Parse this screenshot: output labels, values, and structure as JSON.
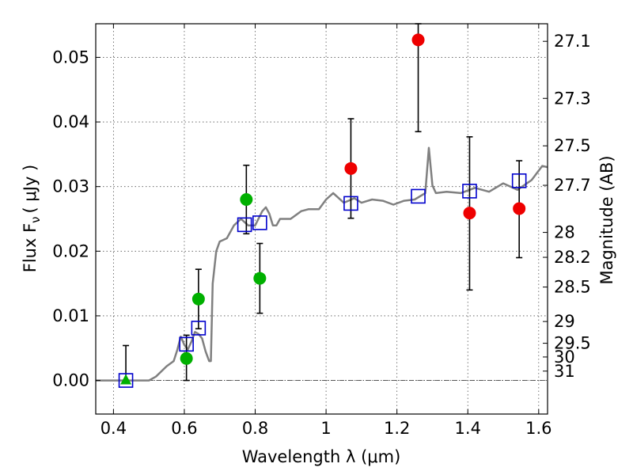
{
  "chart_data": {
    "type": "scatter",
    "xlabel": "Wavelength  λ (μm)",
    "ylabel": "Flux  F",
    "ylabel_sub": "ν",
    "ylabel_unit": "( μJy )",
    "y2label": "Magnitude (AB)",
    "xlim": [
      0.35,
      1.625
    ],
    "ylim": [
      -0.0052,
      0.0552
    ],
    "grid": true,
    "x_ticks": [
      {
        "v": 0.4,
        "label": "0.4"
      },
      {
        "v": 0.6,
        "label": "0.6"
      },
      {
        "v": 0.8,
        "label": "0.8"
      },
      {
        "v": 1.0,
        "label": "1"
      },
      {
        "v": 1.2,
        "label": "1.2"
      },
      {
        "v": 1.4,
        "label": "1.4"
      },
      {
        "v": 1.6,
        "label": "1.6"
      }
    ],
    "y_ticks": [
      {
        "v": 0.0,
        "label": "0.00"
      },
      {
        "v": 0.01,
        "label": "0.01"
      },
      {
        "v": 0.02,
        "label": "0.02"
      },
      {
        "v": 0.03,
        "label": "0.03"
      },
      {
        "v": 0.04,
        "label": "0.04"
      },
      {
        "v": 0.05,
        "label": "0.05"
      }
    ],
    "mag_ticks": [
      {
        "v": 27.1,
        "label": "27.1"
      },
      {
        "v": 27.3,
        "label": "27.3"
      },
      {
        "v": 27.5,
        "label": "27.5"
      },
      {
        "v": 27.7,
        "label": "27.7"
      },
      {
        "v": 28.0,
        "label": "28"
      },
      {
        "v": 28.2,
        "label": "28.2"
      },
      {
        "v": 28.5,
        "label": "28.5"
      },
      {
        "v": 29.0,
        "label": "29"
      },
      {
        "v": 29.5,
        "label": "29.5"
      },
      {
        "v": 30.0,
        "label": "30"
      },
      {
        "v": 31.0,
        "label": "31"
      }
    ],
    "mag_zero_point": 23.9,
    "model_spectrum": [
      [
        0.35,
        0.0
      ],
      [
        0.5,
        0.0
      ],
      [
        0.52,
        0.0006
      ],
      [
        0.55,
        0.0022
      ],
      [
        0.57,
        0.003
      ],
      [
        0.58,
        0.0047
      ],
      [
        0.59,
        0.0068
      ],
      [
        0.6,
        0.0055
      ],
      [
        0.61,
        0.0048
      ],
      [
        0.62,
        0.006
      ],
      [
        0.63,
        0.0075
      ],
      [
        0.64,
        0.0072
      ],
      [
        0.65,
        0.0065
      ],
      [
        0.66,
        0.0045
      ],
      [
        0.67,
        0.003
      ],
      [
        0.675,
        0.003
      ],
      [
        0.68,
        0.015
      ],
      [
        0.69,
        0.02
      ],
      [
        0.7,
        0.0215
      ],
      [
        0.72,
        0.022
      ],
      [
        0.74,
        0.024
      ],
      [
        0.76,
        0.025
      ],
      [
        0.78,
        0.024
      ],
      [
        0.8,
        0.024
      ],
      [
        0.82,
        0.0262
      ],
      [
        0.83,
        0.0268
      ],
      [
        0.84,
        0.0258
      ],
      [
        0.85,
        0.024
      ],
      [
        0.86,
        0.024
      ],
      [
        0.87,
        0.025
      ],
      [
        0.9,
        0.025
      ],
      [
        0.93,
        0.0262
      ],
      [
        0.95,
        0.0265
      ],
      [
        0.98,
        0.0265
      ],
      [
        1.0,
        0.028
      ],
      [
        1.02,
        0.029
      ],
      [
        1.05,
        0.0275
      ],
      [
        1.08,
        0.0282
      ],
      [
        1.1,
        0.0275
      ],
      [
        1.13,
        0.028
      ],
      [
        1.16,
        0.0278
      ],
      [
        1.19,
        0.0272
      ],
      [
        1.22,
        0.0278
      ],
      [
        1.25,
        0.028
      ],
      [
        1.28,
        0.029
      ],
      [
        1.29,
        0.036
      ],
      [
        1.3,
        0.0302
      ],
      [
        1.31,
        0.029
      ],
      [
        1.34,
        0.0292
      ],
      [
        1.38,
        0.029
      ],
      [
        1.42,
        0.0298
      ],
      [
        1.46,
        0.0292
      ],
      [
        1.5,
        0.0305
      ],
      [
        1.54,
        0.0295
      ],
      [
        1.58,
        0.031
      ],
      [
        1.61,
        0.0332
      ],
      [
        1.625,
        0.033
      ]
    ],
    "model_bandpass": [
      {
        "x": 0.435,
        "y": 0.0
      },
      {
        "x": 0.606,
        "y": 0.0056
      },
      {
        "x": 0.64,
        "y": 0.0081
      },
      {
        "x": 0.77,
        "y": 0.0241
      },
      {
        "x": 0.813,
        "y": 0.0244
      },
      {
        "x": 1.07,
        "y": 0.0274
      },
      {
        "x": 1.26,
        "y": 0.0285
      },
      {
        "x": 1.405,
        "y": 0.0293
      },
      {
        "x": 1.545,
        "y": 0.0309
      }
    ],
    "green_detections": [
      {
        "x": 0.606,
        "y": 0.0034
      },
      {
        "x": 0.64,
        "y": 0.0126
      },
      {
        "x": 0.775,
        "y": 0.028
      },
      {
        "x": 0.813,
        "y": 0.0158
      }
    ],
    "green_triangle": {
      "x": 0.435,
      "y": 0.0
    },
    "red_detections": [
      {
        "x": 1.07,
        "y": 0.0328
      },
      {
        "x": 1.26,
        "y": 0.0527
      },
      {
        "x": 1.405,
        "y": 0.0259
      },
      {
        "x": 1.545,
        "y": 0.0266
      }
    ],
    "error_bars": [
      {
        "x": 0.435,
        "lo": 0.0,
        "hi": 0.0054
      },
      {
        "x": 0.606,
        "lo": 0.0,
        "hi": 0.007
      },
      {
        "x": 0.64,
        "lo": 0.008,
        "hi": 0.0172
      },
      {
        "x": 0.775,
        "lo": 0.0227,
        "hi": 0.0333
      },
      {
        "x": 0.813,
        "lo": 0.0104,
        "hi": 0.0212
      },
      {
        "x": 1.07,
        "lo": 0.0251,
        "hi": 0.0405
      },
      {
        "x": 1.26,
        "lo": 0.0385,
        "hi": 0.0552
      },
      {
        "x": 1.405,
        "lo": 0.014,
        "hi": 0.0377
      },
      {
        "x": 1.545,
        "lo": 0.019,
        "hi": 0.034
      }
    ],
    "colors": {
      "model_line": "#808080",
      "bandpass_square": "#0000cc",
      "green_points": "#00b000",
      "red_points": "#ee0000",
      "error_bar": "#000000",
      "grid": "#555555"
    }
  }
}
